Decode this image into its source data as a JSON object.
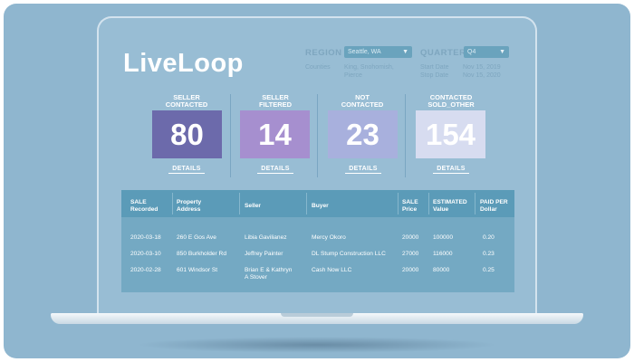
{
  "app": {
    "logo": "LiveLoop"
  },
  "filters": {
    "region_label": "REGION",
    "region_value": "Seattle, WA",
    "counties_label": "Counties",
    "counties_value": [
      "King, Snohomish,",
      "Pierce"
    ],
    "quarter_label": "QUARTER",
    "quarter_value": "Q4",
    "start_date_label": "Start Date",
    "start_date_value": "Nov 15, 2019",
    "stop_date_label": "Stop Date",
    "stop_date_value": "Nov 15, 2020"
  },
  "kpis": [
    {
      "label_line1": "SELLER",
      "label_line2": "CONTACTED",
      "value": "80",
      "details": "DETAILS",
      "color": "#6c6aab"
    },
    {
      "label_line1": "SELLER",
      "label_line2": "FILTERED",
      "value": "14",
      "details": "DETAILS",
      "color": "#a68fcf"
    },
    {
      "label_line1": "NOT",
      "label_line2": "CONTACTED",
      "value": "23",
      "details": "DETAILS",
      "color": "#a8b0dd"
    },
    {
      "label_line1": "CONTACTED",
      "label_line2": "SOLD_OTHER",
      "value": "154",
      "details": "DETAILS",
      "color": "#d7dcf0"
    }
  ],
  "table": {
    "headers": [
      {
        "l1": "SALE",
        "l2": "Recorded"
      },
      {
        "l1": "Property",
        "l2": "Address"
      },
      {
        "l1": "Seller",
        "l2": ""
      },
      {
        "l1": "Buyer",
        "l2": ""
      },
      {
        "l1": "SALE",
        "l2": "Price"
      },
      {
        "l1": "ESTIMATED",
        "l2": "Value"
      },
      {
        "l1": "PAID PER",
        "l2": "Dollar"
      }
    ],
    "rows": [
      {
        "date": "2020-03-18",
        "address": "260 E Gos Ave",
        "seller": [
          "Libia Gavilianez",
          ""
        ],
        "buyer": "Mercy Okoro",
        "price": "20000",
        "value": "100000",
        "paid": "0.20"
      },
      {
        "date": "2020-03-10",
        "address": "850 Burkholder Rd",
        "seller": [
          "Jeffrey Painter",
          ""
        ],
        "buyer": "DL Stump Construction LLC",
        "price": "27000",
        "value": "116000",
        "paid": "0.23"
      },
      {
        "date": "2020-02-28",
        "address": "601 Windsor St",
        "seller": [
          "Brian E & Kathryn",
          "A Stover"
        ],
        "buyer": "Cash Now LLC",
        "price": "20000",
        "value": "80000",
        "paid": "0.25"
      }
    ]
  },
  "colors": {
    "background": "#8fb6cf",
    "screen": "#98bdd4",
    "table_header": "#5b9bb8",
    "table_body": "#74a9c3"
  }
}
